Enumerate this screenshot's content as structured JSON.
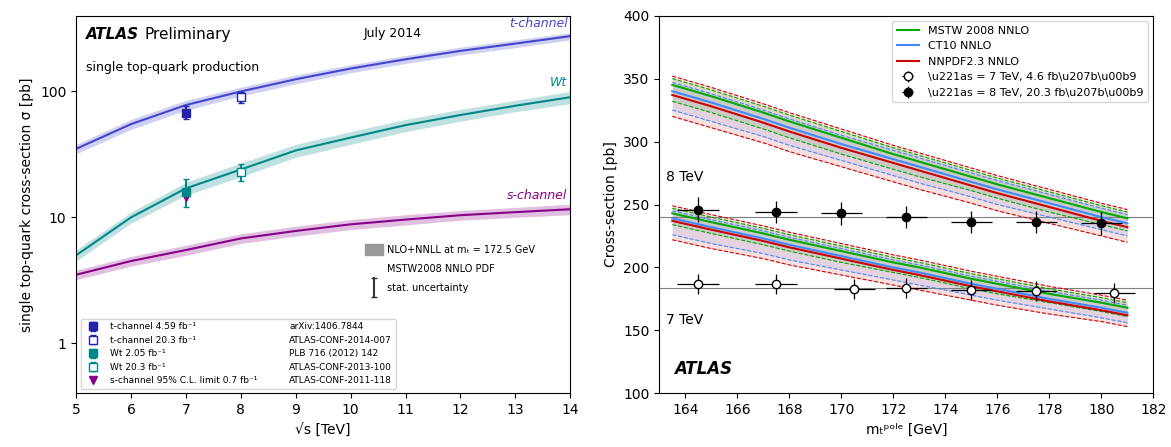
{
  "chart_data": [
    {
      "type": "line",
      "log": "y",
      "x_label": "√s [TeV]",
      "y_label": "single top-quark cross-section σ [pb]",
      "xlim": [
        5,
        14
      ],
      "ylim": [
        0.4,
        400
      ],
      "xticks": [
        5,
        6,
        7,
        8,
        9,
        10,
        11,
        12,
        13,
        14
      ],
      "yticks": [
        1,
        10,
        100
      ],
      "legend": "lower left",
      "experiment_label": "ATLAS",
      "status_label": "Preliminary",
      "subtitle": "single top-quark production",
      "date_label": "July 2014",
      "notes": [
        "NLO+NNLL at mₜ = 172.5 GeV",
        "MSTW2008 NNLO PDF",
        "stat. uncertainty"
      ],
      "x": [
        5,
        6,
        7,
        8,
        9,
        10,
        11,
        12,
        13,
        14
      ],
      "series": [
        {
          "type": "line",
          "label": "t-channel",
          "color": "#4444cc",
          "values": [
            35,
            55,
            78,
            100,
            125,
            152,
            180,
            210,
            240,
            275
          ],
          "upper": [
            38,
            60,
            85,
            108,
            135,
            163,
            193,
            225,
            257,
            293
          ],
          "lower": [
            32,
            50,
            71,
            92,
            115,
            141,
            167,
            195,
            223,
            257
          ]
        },
        {
          "type": "line",
          "label": "Wt",
          "color": "#008888",
          "values": [
            5,
            10,
            17,
            24,
            34,
            43,
            54,
            65,
            77,
            90
          ],
          "upper": [
            5.5,
            11,
            19,
            27,
            38,
            48,
            60,
            72,
            85,
            100
          ],
          "lower": [
            4.5,
            9,
            15,
            21,
            30,
            38,
            48,
            58,
            69,
            80
          ]
        },
        {
          "type": "line",
          "label": "s-channel",
          "color": "#880088",
          "values": [
            3.5,
            4.5,
            5.5,
            6.8,
            7.8,
            8.8,
            9.6,
            10.4,
            11.0,
            11.6
          ],
          "upper": [
            3.8,
            4.9,
            6.0,
            7.4,
            8.5,
            9.6,
            10.5,
            11.3,
            12.0,
            12.7
          ],
          "lower": [
            3.2,
            4.1,
            5.0,
            6.2,
            7.1,
            8.0,
            8.7,
            9.5,
            10.0,
            10.5
          ]
        },
        {
          "type": "errorbar",
          "name": "t-channel 4.59 fb⁻¹",
          "reference": "arXiv:1406.7844",
          "color": "#2222aa",
          "marker": "square",
          "x": [
            7.0
          ],
          "values": [
            68.0
          ],
          "yerr": [
            8.0
          ]
        },
        {
          "type": "errorbar",
          "name": "t-channel 20.3 fb⁻¹",
          "reference": "ATLAS-CONF-2014-007",
          "color": "#2222aa",
          "marker": "open_square",
          "x": [
            8.0
          ],
          "values": [
            90.0
          ],
          "yerr": [
            9.0
          ]
        },
        {
          "type": "errorbar",
          "name": "Wt 2.05 fb⁻¹",
          "reference": "PLB 716 (2012) 142",
          "color": "#008888",
          "marker": "square",
          "x": [
            7.0
          ],
          "values": [
            16.0
          ],
          "yerr": [
            4.0
          ]
        },
        {
          "type": "errorbar",
          "name": "Wt 20.3 fb⁻¹",
          "reference": "ATLAS-CONF-2013-100",
          "color": "#008888",
          "marker": "open_square",
          "x": [
            8.0
          ],
          "values": [
            23.0
          ],
          "yerr": [
            3.5
          ]
        },
        {
          "type": "scatter",
          "name": "s-channel 95% C.L. limit 0.7 fb⁻¹",
          "reference": "ATLAS-CONF-2011-118",
          "color": "#880088",
          "marker": "triangle_down",
          "x": [
            7.0
          ],
          "values": [
            14.5
          ]
        }
      ]
    },
    {
      "type": "line",
      "x_label": "mₜᵖᵒˡᵉ [GeV]",
      "y_label": "Cross-section [pb]",
      "xlim": [
        163,
        182
      ],
      "ylim": [
        100,
        400
      ],
      "xticks": [
        164,
        166,
        168,
        170,
        172,
        174,
        176,
        178,
        180,
        182
      ],
      "yticks": [
        100,
        150,
        200,
        250,
        300,
        350,
        400
      ],
      "legend": "upper right",
      "experiment_label": "ATLAS",
      "x": [
        163.5,
        165,
        167,
        168,
        170,
        172,
        173,
        175,
        176,
        178,
        180,
        181
      ],
      "series": [
        {
          "type": "line",
          "name": "MSTW 2008 NNLO",
          "color": "#00aa00",
          "curves": [
            {
              "values": [
                345,
                336,
                323,
                316,
                303,
                290,
                284,
                272,
                266,
                255,
                244,
                239
              ],
              "upper": [
                350,
                341,
                328,
                321,
                308,
                295,
                289,
                277,
                271,
                260,
                249,
                244
              ],
              "lower": [
                332,
                323,
                310,
                303,
                290,
                278,
                272,
                261,
                255,
                244,
                234,
                229
              ]
            },
            {
              "values": [
                243,
                236,
                227,
                222,
                213,
                204,
                200,
                191,
                187,
                179,
                172,
                168
              ],
              "upper": [
                247,
                240,
                231,
                226,
                217,
                208,
                204,
                195,
                191,
                183,
                176,
                172
              ],
              "lower": [
                234,
                227,
                218,
                213,
                204,
                196,
                192,
                183,
                179,
                172,
                165,
                161
              ]
            }
          ]
        },
        {
          "type": "line",
          "name": "CT10 NNLO",
          "color": "#4488ff",
          "curves": [
            {
              "values": [
                340,
                331,
                318,
                311,
                298,
                286,
                280,
                268,
                262,
                251,
                240,
                235
              ],
              "upper": [
                347,
                338,
                325,
                318,
                305,
                293,
                287,
                275,
                269,
                258,
                247,
                242
              ],
              "lower": [
                325,
                316,
                304,
                297,
                285,
                273,
                267,
                256,
                250,
                240,
                230,
                225
              ]
            },
            {
              "values": [
                239,
                232,
                223,
                218,
                209,
                200,
                196,
                187,
                183,
                175,
                168,
                164
              ],
              "upper": [
                245,
                238,
                229,
                224,
                215,
                206,
                202,
                193,
                189,
                181,
                174,
                170
              ],
              "lower": [
                226,
                219,
                211,
                206,
                198,
                190,
                186,
                178,
                174,
                167,
                160,
                156
              ]
            }
          ]
        },
        {
          "type": "line",
          "name": "NNPDF2.3 NNLO",
          "color": "#cc0000",
          "curves": [
            {
              "values": [
                337,
                328,
                315,
                308,
                295,
                283,
                277,
                265,
                259,
                248,
                237,
                232
              ],
              "upper": [
                352,
                343,
                330,
                323,
                310,
                297,
                291,
                279,
                273,
                262,
                251,
                246
              ],
              "lower": [
                320,
                311,
                299,
                292,
                280,
                268,
                262,
                251,
                245,
                235,
                225,
                220
              ]
            },
            {
              "values": [
                237,
                230,
                221,
                216,
                207,
                198,
                194,
                185,
                181,
                173,
                166,
                162
              ],
              "upper": [
                249,
                242,
                233,
                228,
                219,
                210,
                206,
                197,
                193,
                185,
                178,
                174
              ],
              "lower": [
                222,
                215,
                207,
                202,
                194,
                186,
                182,
                174,
                170,
                163,
                157,
                153
              ]
            }
          ]
        },
        {
          "type": "errorbar",
          "name": "\\u221as = 7 TeV, 4.6 fb\\u207b\\u00b9",
          "color": "#000000",
          "marker": "open_circle",
          "energy_label": "7 TeV",
          "reference_line": 184,
          "x": [
            164.5,
            167.5,
            170.5,
            172.5,
            175.0,
            177.5,
            180.5
          ],
          "values": [
            187,
            187,
            183,
            184,
            182,
            181,
            180
          ],
          "yerr": [
            8,
            8,
            8,
            8,
            8,
            8,
            8
          ],
          "xerr": 0.8
        },
        {
          "type": "errorbar",
          "name": "\\u221as = 8 TeV, 20.3 fb\\u207b\\u00b9",
          "color": "#000000",
          "marker": "circle",
          "energy_label": "8 TeV",
          "reference_line": 240,
          "x": [
            164.5,
            167.5,
            170.0,
            172.5,
            175.0,
            177.5,
            180.0
          ],
          "values": [
            246,
            244,
            243,
            240,
            236,
            236,
            235
          ],
          "yerr": [
            10,
            9,
            9,
            9,
            9,
            9,
            9
          ],
          "xerr": 0.8
        }
      ]
    }
  ]
}
